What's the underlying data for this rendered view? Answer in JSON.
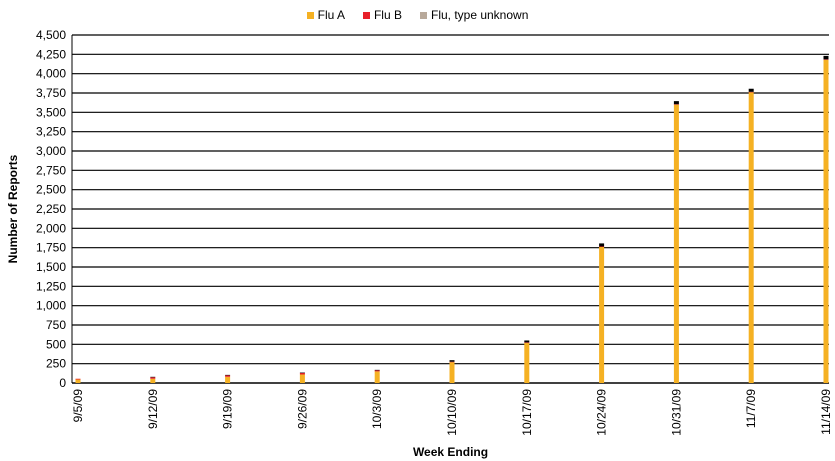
{
  "chart_data": {
    "type": "bar",
    "stacked": true,
    "xlabel": "Week Ending",
    "ylabel": "Number of Reports",
    "ylim": [
      0,
      4500
    ],
    "ytick_step": 250,
    "yticks": [
      "0",
      "250",
      "500",
      "750",
      "1,000",
      "1,250",
      "1,500",
      "1,750",
      "2,000",
      "2,250",
      "2,500",
      "2,750",
      "3,000",
      "3,250",
      "3,500",
      "3,750",
      "4,000",
      "4,250",
      "4,500"
    ],
    "categories": [
      "9/5/09",
      "9/12/09",
      "9/19/09",
      "9/26/09",
      "10/3/09",
      "10/10/09",
      "10/17/09",
      "10/24/09",
      "10/31/09",
      "11/7/09",
      "11/14/09"
    ],
    "series": [
      {
        "name": "Flu A",
        "color": "#F5B123",
        "values": [
          45,
          55,
          80,
          110,
          150,
          270,
          520,
          1760,
          3600,
          3760,
          4180
        ]
      },
      {
        "name": "Flu B",
        "color": "#E8202A",
        "values": [
          10,
          20,
          20,
          20,
          15,
          5,
          5,
          5,
          5,
          5,
          5
        ]
      },
      {
        "name": "Flu, type unknown",
        "color": "#000000",
        "values": [
          0,
          5,
          5,
          5,
          5,
          20,
          25,
          40,
          40,
          40,
          45
        ]
      }
    ],
    "legend_labels": [
      {
        "name": "Flu A",
        "color": "#F5B123"
      },
      {
        "name": "Flu B",
        "color": "#E8202A"
      },
      {
        "name": "Flu, type unknown",
        "color": "#B8A99A"
      }
    ],
    "grid": true,
    "legend_position": "top-center"
  }
}
